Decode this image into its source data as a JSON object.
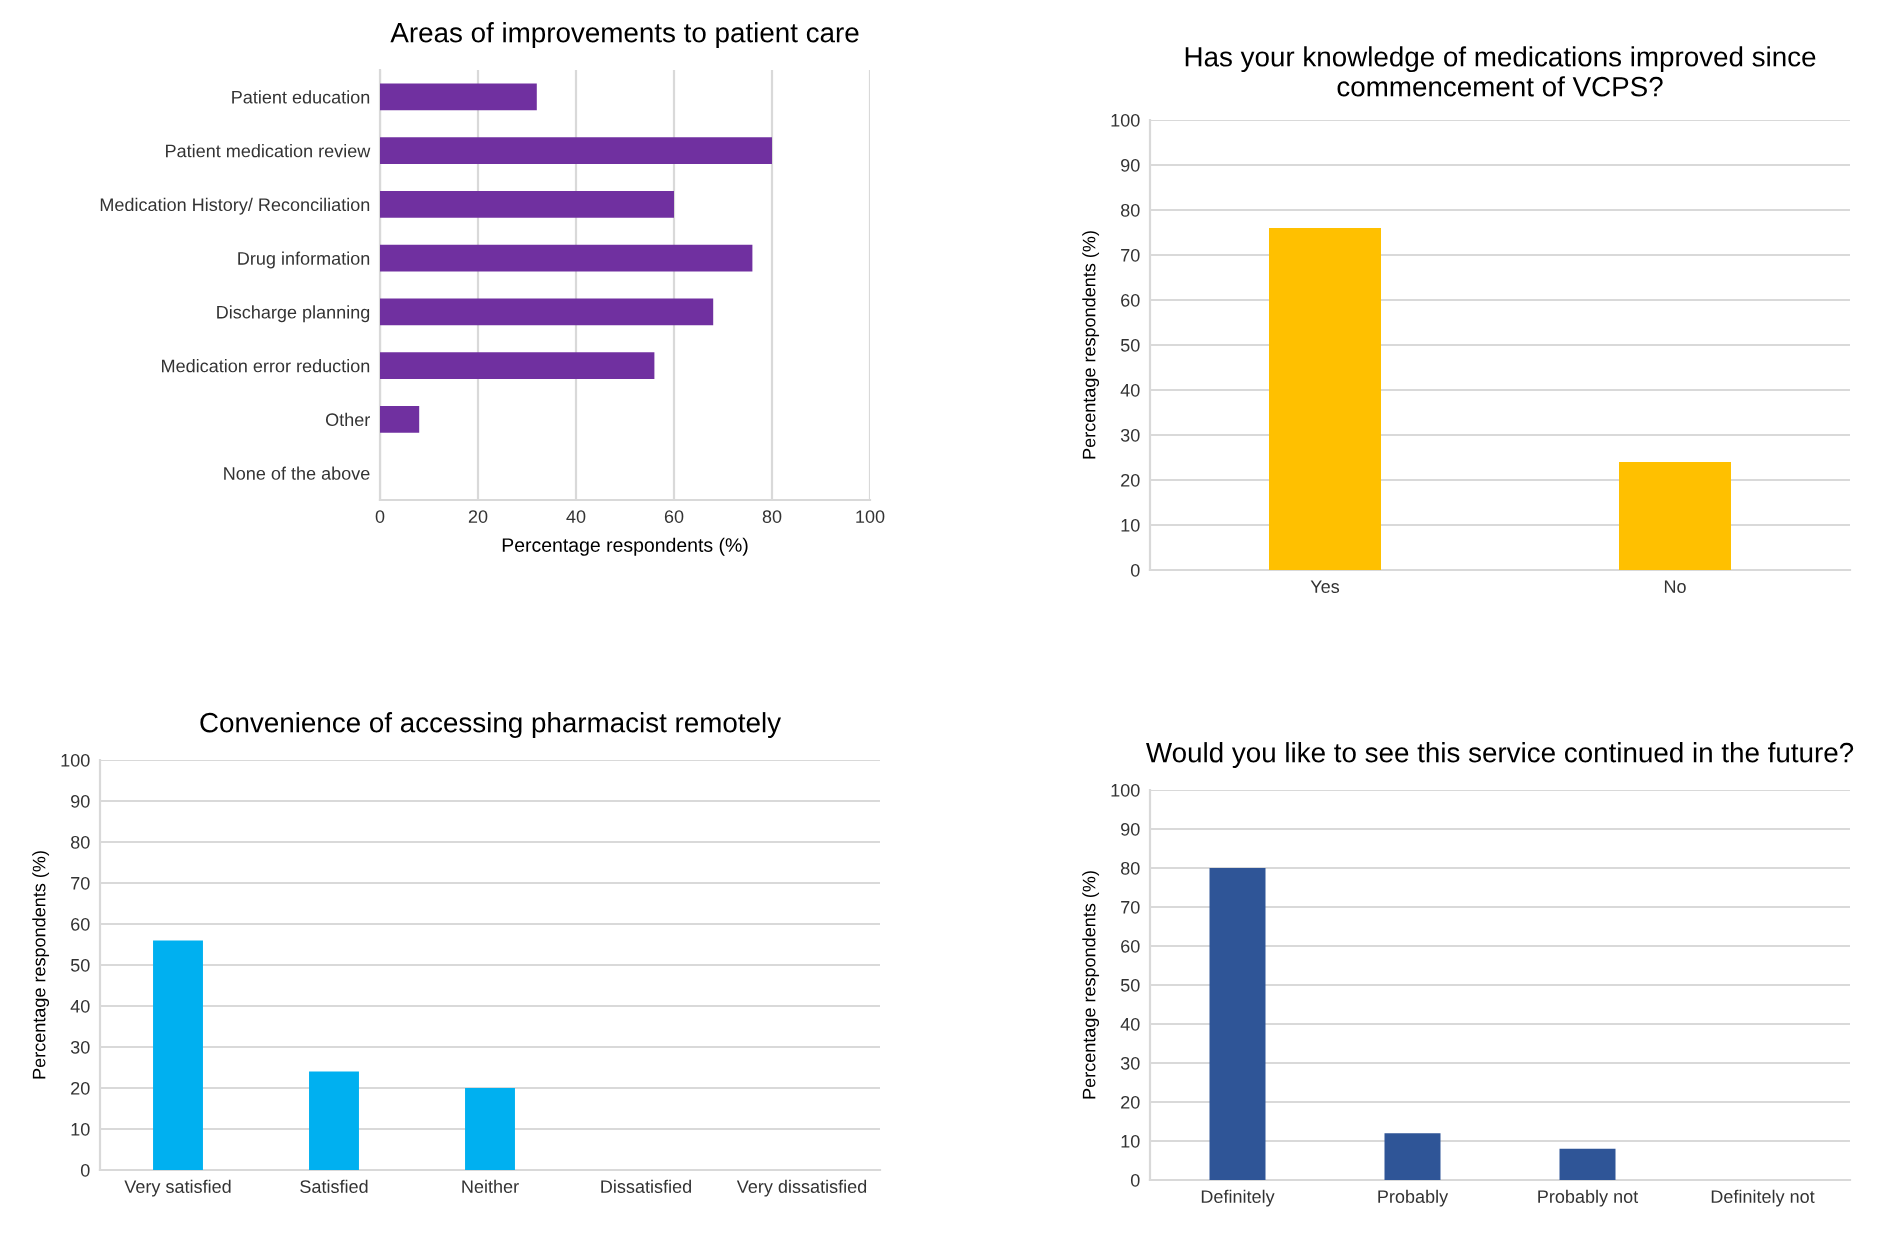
{
  "chart_data": [
    {
      "type": "bar",
      "title": "Areas of improvements to patient care",
      "xlabel": "Percentage respondents (%)",
      "orientation": "horizontal",
      "categories": [
        "Patient education",
        "Patient medication review",
        "Medication History/ Reconciliation",
        "Drug information",
        "Discharge planning",
        "Medication error reduction",
        "Other",
        "None of the above"
      ],
      "values": [
        32,
        80,
        60,
        76,
        68,
        56,
        8,
        0
      ],
      "color": "#7030a0",
      "xlim": [
        0,
        100
      ],
      "xticks": [
        0,
        20,
        40,
        60,
        80,
        100
      ],
      "grid": "x"
    },
    {
      "type": "bar",
      "title": "Has your knowledge of medications improved since commencement of VCPS?",
      "ylabel": "Percentage respondents (%)",
      "categories": [
        "Yes",
        "No"
      ],
      "values": [
        76,
        24
      ],
      "color": "#ffc000",
      "ylim": [
        0,
        100
      ],
      "yticks": [
        0,
        10,
        20,
        30,
        40,
        50,
        60,
        70,
        80,
        90,
        100
      ],
      "grid": "y"
    },
    {
      "type": "bar",
      "title": "Convenience of accessing pharmacist remotely",
      "ylabel": "Percentage respondents (%)",
      "categories": [
        "Very satisfied",
        "Satisfied",
        "Neither",
        "Dissatisfied",
        "Very dissatisfied"
      ],
      "values": [
        56,
        24,
        20,
        0,
        0
      ],
      "color": "#00b0f0",
      "ylim": [
        0,
        100
      ],
      "yticks": [
        0,
        10,
        20,
        30,
        40,
        50,
        60,
        70,
        80,
        90,
        100
      ],
      "grid": "y"
    },
    {
      "type": "bar",
      "title": "Would you like to see this service continued in the future?",
      "ylabel": "Percentage respondents (%)",
      "categories": [
        "Definitely",
        "Probably",
        "Probably not",
        "Definitely not"
      ],
      "values": [
        80,
        12,
        8,
        0
      ],
      "color": "#2f5597",
      "ylim": [
        0,
        100
      ],
      "yticks": [
        0,
        10,
        20,
        30,
        40,
        50,
        60,
        70,
        80,
        90,
        100
      ],
      "grid": "y"
    }
  ]
}
